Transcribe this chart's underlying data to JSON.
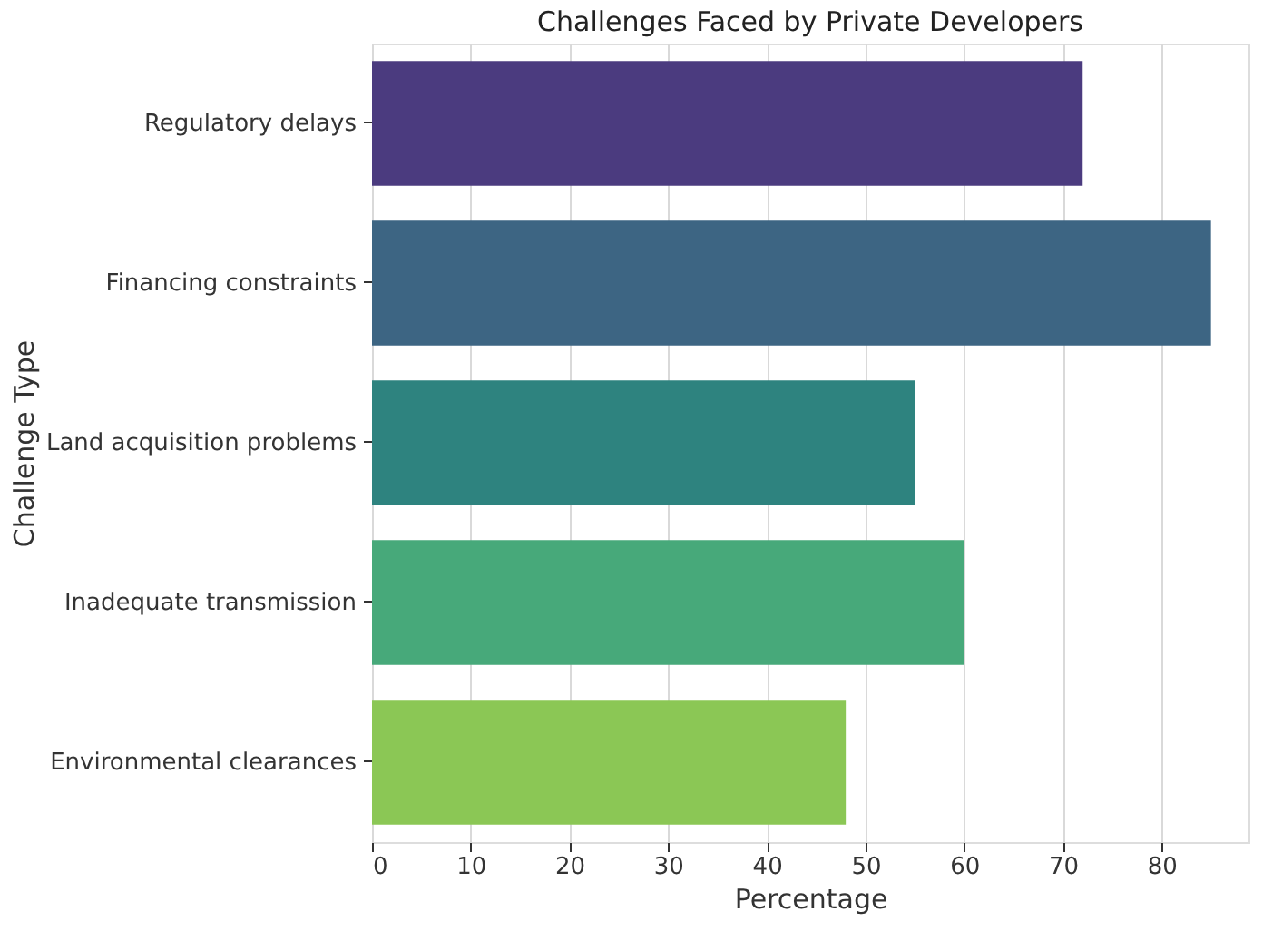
{
  "chart_data": {
    "type": "bar",
    "orientation": "horizontal",
    "title": "Challenges Faced by Private Developers",
    "xlabel": "Percentage",
    "ylabel": "Challenge Type",
    "categories": [
      "Regulatory delays",
      "Financing constraints",
      "Land acquisition problems",
      "Inadequate transmission",
      "Environmental clearances"
    ],
    "values": [
      72,
      85,
      55,
      60,
      48
    ],
    "colors": [
      "#4b3b7f",
      "#3d6583",
      "#2e837f",
      "#47a97a",
      "#8bc755"
    ],
    "xlim": [
      0,
      88.8
    ],
    "xticks": [
      0,
      10,
      20,
      30,
      40,
      50,
      60,
      70,
      80
    ],
    "grid": "x"
  }
}
